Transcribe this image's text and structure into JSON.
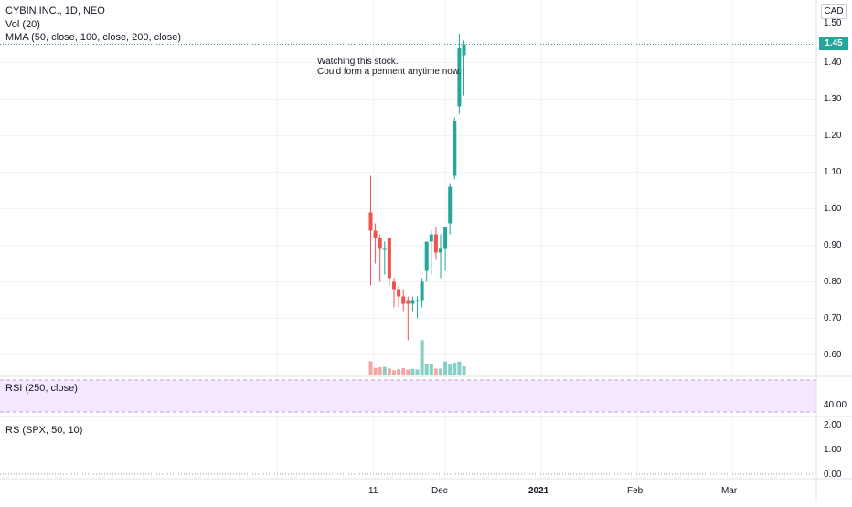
{
  "header": {
    "symbol_line": "CYBIN INC., 1D, NEO",
    "vol_line": "Vol (20)",
    "mma_line": "MMA (50, close, 100, close, 200, close)",
    "currency": "CAD",
    "last_price": "1.45"
  },
  "annotation": {
    "line1": "Watching this stock.",
    "line2": "Could form a pennent anytime now."
  },
  "panes": {
    "rsi_label": "RSI (250, close)",
    "rsi_level": "40.00",
    "rs_label": "RS (SPX, 50, 10)",
    "rs_ticks": [
      "2.00",
      "1.00",
      "0.00"
    ]
  },
  "colors": {
    "up": "#26a69a",
    "down": "#ef5350",
    "vol_up": "#86cfc6",
    "vol_down": "#f2a7a5",
    "rsi_band": "#f3e8fd"
  },
  "chart_data": {
    "type": "candlestick",
    "title": "CYBIN INC., 1D, NEO",
    "ylim": [
      0.53,
      1.51
    ],
    "yticks": [
      "1.50",
      "1.40",
      "1.30",
      "1.20",
      "1.10",
      "1.00",
      "0.90",
      "0.80",
      "0.70",
      "0.60"
    ],
    "xticks": [
      "11",
      "Dec",
      "2021",
      "Feb",
      "Mar"
    ],
    "candles": [
      {
        "o": 0.99,
        "h": 1.09,
        "l": 0.79,
        "c": 0.94
      },
      {
        "o": 0.94,
        "h": 0.96,
        "l": 0.85,
        "c": 0.92
      },
      {
        "o": 0.92,
        "h": 0.93,
        "l": 0.8,
        "c": 0.89
      },
      {
        "o": 0.89,
        "h": 0.91,
        "l": 0.82,
        "c": 0.89
      },
      {
        "o": 0.92,
        "h": 0.92,
        "l": 0.79,
        "c": 0.81
      },
      {
        "o": 0.8,
        "h": 0.81,
        "l": 0.73,
        "c": 0.78
      },
      {
        "o": 0.78,
        "h": 0.79,
        "l": 0.73,
        "c": 0.76
      },
      {
        "o": 0.76,
        "h": 0.78,
        "l": 0.72,
        "c": 0.74
      },
      {
        "o": 0.75,
        "h": 0.76,
        "l": 0.64,
        "c": 0.74
      },
      {
        "o": 0.74,
        "h": 0.76,
        "l": 0.72,
        "c": 0.75
      },
      {
        "o": 0.75,
        "h": 0.76,
        "l": 0.7,
        "c": 0.75
      },
      {
        "o": 0.75,
        "h": 0.81,
        "l": 0.73,
        "c": 0.8
      },
      {
        "o": 0.83,
        "h": 0.91,
        "l": 0.8,
        "c": 0.91
      },
      {
        "o": 0.91,
        "h": 0.94,
        "l": 0.82,
        "c": 0.93
      },
      {
        "o": 0.93,
        "h": 0.95,
        "l": 0.86,
        "c": 0.88
      },
      {
        "o": 0.88,
        "h": 0.93,
        "l": 0.81,
        "c": 0.89
      },
      {
        "o": 0.89,
        "h": 0.95,
        "l": 0.83,
        "c": 0.95
      },
      {
        "o": 0.96,
        "h": 1.07,
        "l": 0.93,
        "c": 1.06
      },
      {
        "o": 1.09,
        "h": 1.25,
        "l": 1.08,
        "c": 1.24
      },
      {
        "o": 1.28,
        "h": 1.48,
        "l": 1.26,
        "c": 1.44
      },
      {
        "o": 1.42,
        "h": 1.46,
        "l": 1.31,
        "c": 1.45
      }
    ],
    "volume": [
      10,
      5,
      5.5,
      5.8,
      4.5,
      3.2,
      4,
      4.8,
      3.8,
      4.3,
      3.8,
      26,
      8.3,
      8,
      4.5,
      4.5,
      10,
      7.5,
      9,
      9.8,
      6.2
    ]
  }
}
